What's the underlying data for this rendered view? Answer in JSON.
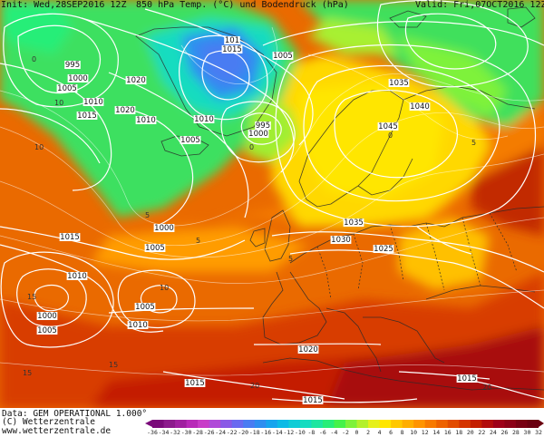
{
  "header": {
    "init": "Init: Wed,28SEP2016 12Z",
    "title": "850 hPa Temp. (°C) und Bodendruck (hPa)",
    "valid": "Valid: Fri,07OCT2016 12Z"
  },
  "footer": {
    "data_line": "Data: GEM OPERATIONAL 1.000°",
    "copyright": "(C) Wetterzentrale",
    "url": "www.wetterzentrale.de"
  },
  "legend": {
    "ticks": [
      "-36",
      "-34",
      "-32",
      "-30",
      "-28",
      "-26",
      "-24",
      "-22",
      "-20",
      "-18",
      "-16",
      "-14",
      "-12",
      "-10",
      "-8",
      "-6",
      "-4",
      "-2",
      "0",
      "2",
      "4",
      "6",
      "8",
      "10",
      "12",
      "14",
      "16",
      "18",
      "20",
      "22",
      "24",
      "26",
      "28",
      "30",
      "32"
    ],
    "colors": [
      "#7a0a7a",
      "#8c1a8c",
      "#a020a0",
      "#b82ab8",
      "#c83cc8",
      "#b04ad8",
      "#8a5ae6",
      "#6a6af0",
      "#4a7cf2",
      "#2e8ef0",
      "#16a4ee",
      "#0cbae6",
      "#10ccd6",
      "#16dcc0",
      "#1ee6a0",
      "#28ee78",
      "#46f24a",
      "#7ef23a",
      "#b4f02c",
      "#e6f01c",
      "#ffe600",
      "#ffc800",
      "#ffae00",
      "#ff9400",
      "#f87a00",
      "#ee6200",
      "#e24c00",
      "#d43400",
      "#c41e00",
      "#b20c0c",
      "#9e0018",
      "#8c0016",
      "#780012",
      "#6a0010"
    ]
  },
  "pressure_labels": [
    "995",
    "1000",
    "1005",
    "1010",
    "1015",
    "1020",
    "1010",
    "1020",
    "101",
    "1015",
    "1005",
    "1010",
    "1005",
    "995",
    "1000",
    "1035",
    "1040",
    "1045",
    "1000",
    "1005",
    "1015",
    "1035",
    "1030",
    "1025",
    "1010",
    "1005",
    "1000",
    "1005",
    "1010",
    "1020",
    "1015",
    "1015",
    "1015"
  ],
  "isotherm_labels": [
    "10",
    "10",
    "5",
    "5",
    "5",
    "0",
    "0",
    "15",
    "15",
    "20",
    "20",
    "15",
    "10",
    "5",
    "0"
  ]
}
